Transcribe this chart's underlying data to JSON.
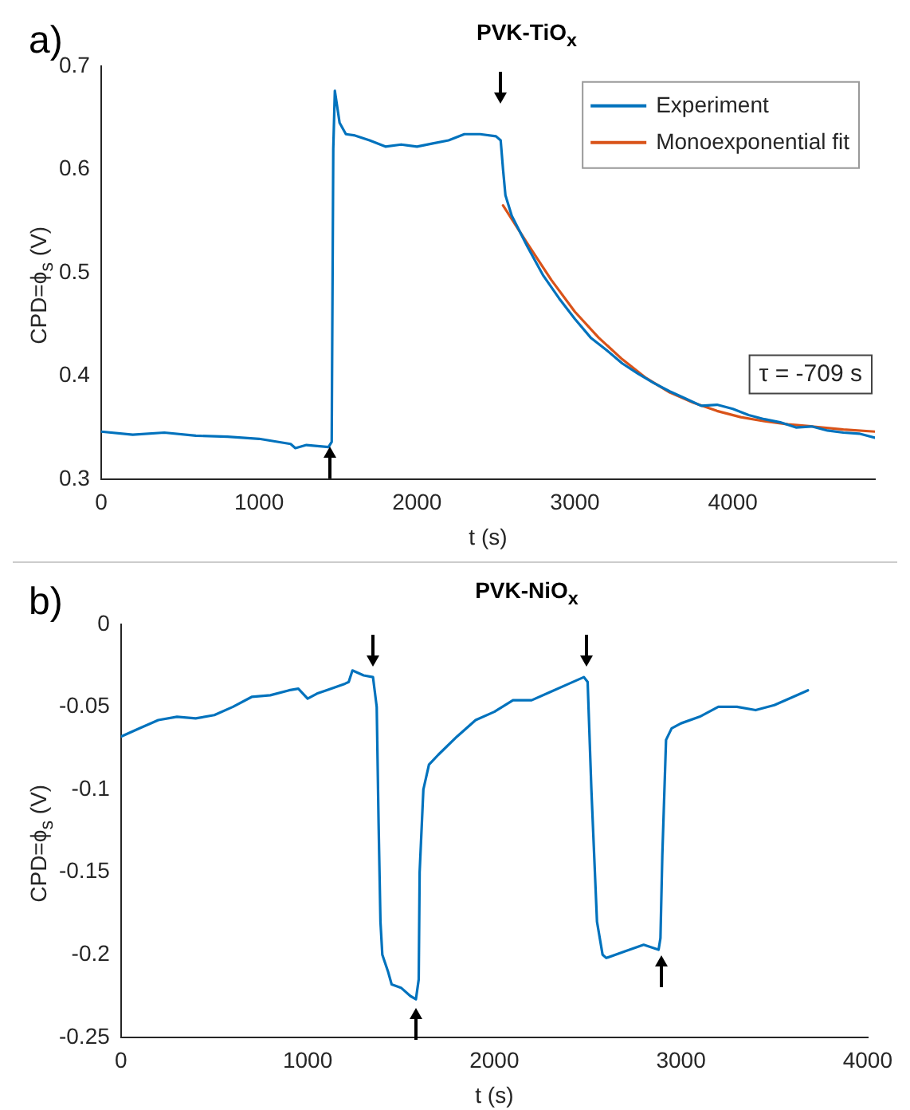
{
  "chart_data": [
    {
      "type": "line",
      "title": "PVK-TiO$_{x}$",
      "xlabel": "t (s)",
      "ylabel": "CPD=ϕ$_{s}$ (V)",
      "annotations": [
        "a)",
        "τ = -709 s"
      ],
      "xlim": [
        0,
        4900
      ],
      "xticks": [
        0,
        1000,
        2000,
        3000,
        4000
      ],
      "ylim": [
        0.3,
        0.7
      ],
      "yticks": [
        0.3,
        0.4,
        0.5,
        0.6,
        0.7
      ],
      "grid": false,
      "legend": "top right",
      "marker": "none",
      "line_style": "solid",
      "series": [
        {
          "name": "Experiment",
          "color": "#0072bd",
          "x": [
            0,
            200,
            400,
            600,
            800,
            1000,
            1200,
            1230,
            1300,
            1440,
            1460,
            1470,
            1480,
            1510,
            1550,
            1600,
            1700,
            1800,
            1900,
            2000,
            2100,
            2200,
            2300,
            2400,
            2500,
            2530,
            2545,
            2560,
            2600,
            2700,
            2800,
            2900,
            3000,
            3100,
            3200,
            3300,
            3400,
            3500,
            3600,
            3700,
            3800,
            3900,
            4000,
            4100,
            4200,
            4300,
            4400,
            4500,
            4600,
            4700,
            4800,
            4900
          ],
          "values": [
            0.346,
            0.343,
            0.345,
            0.342,
            0.341,
            0.339,
            0.334,
            0.33,
            0.333,
            0.331,
            0.336,
            0.62,
            0.676,
            0.645,
            0.634,
            0.633,
            0.628,
            0.622,
            0.624,
            0.622,
            0.625,
            0.628,
            0.634,
            0.634,
            0.632,
            0.628,
            0.6,
            0.575,
            0.555,
            0.525,
            0.497,
            0.475,
            0.455,
            0.437,
            0.425,
            0.412,
            0.402,
            0.393,
            0.385,
            0.378,
            0.371,
            0.372,
            0.368,
            0.362,
            0.358,
            0.355,
            0.35,
            0.351,
            0.347,
            0.345,
            0.344,
            0.34
          ]
        },
        {
          "name": "Monoexponential fit",
          "color": "#d95319",
          "x": [
            2545,
            2700,
            2850,
            3000,
            3150,
            3300,
            3450,
            3600,
            3750,
            3900,
            4050,
            4200,
            4350,
            4500,
            4700,
            4900
          ],
          "values": [
            0.565,
            0.528,
            0.493,
            0.462,
            0.437,
            0.416,
            0.398,
            0.384,
            0.374,
            0.366,
            0.36,
            0.356,
            0.353,
            0.351,
            0.348,
            0.346
          ]
        }
      ]
    },
    {
      "type": "line",
      "title": "PVK-NiO$_{x}$",
      "xlabel": "t (s)",
      "ylabel": "CPD=ϕ$_{s}$ (V)",
      "annotations": [
        "b)"
      ],
      "xlim": [
        0,
        4000
      ],
      "xticks": [
        0,
        1000,
        2000,
        3000,
        4000
      ],
      "ylim": [
        -0.25,
        0
      ],
      "yticks": [
        -0.25,
        -0.2,
        -0.15,
        -0.1,
        -0.05,
        0
      ],
      "grid": false,
      "legend": false,
      "marker": "none",
      "line_style": "solid",
      "series": [
        {
          "color": "#0072bd",
          "x": [
            0,
            100,
            200,
            300,
            400,
            500,
            600,
            700,
            800,
            900,
            950,
            1000,
            1050,
            1100,
            1200,
            1220,
            1240,
            1300,
            1350,
            1370,
            1380,
            1390,
            1400,
            1430,
            1450,
            1500,
            1550,
            1580,
            1595,
            1600,
            1620,
            1650,
            1700,
            1800,
            1900,
            2000,
            2100,
            2200,
            2300,
            2400,
            2480,
            2500,
            2520,
            2550,
            2580,
            2600,
            2700,
            2800,
            2880,
            2890,
            2900,
            2920,
            2950,
            3000,
            3100,
            3200,
            3300,
            3400,
            3500,
            3600,
            3680
          ],
          "values": [
            -0.068,
            -0.063,
            -0.058,
            -0.056,
            -0.057,
            -0.055,
            -0.05,
            -0.044,
            -0.043,
            -0.04,
            -0.039,
            -0.045,
            -0.042,
            -0.04,
            -0.036,
            -0.035,
            -0.028,
            -0.031,
            -0.032,
            -0.05,
            -0.12,
            -0.18,
            -0.2,
            -0.21,
            -0.218,
            -0.22,
            -0.225,
            -0.227,
            -0.215,
            -0.15,
            -0.1,
            -0.085,
            -0.079,
            -0.068,
            -0.058,
            -0.053,
            -0.046,
            -0.046,
            -0.041,
            -0.036,
            -0.032,
            -0.035,
            -0.1,
            -0.18,
            -0.2,
            -0.202,
            -0.198,
            -0.194,
            -0.197,
            -0.19,
            -0.14,
            -0.07,
            -0.063,
            -0.06,
            -0.056,
            -0.05,
            -0.05,
            -0.052,
            -0.049,
            -0.044,
            -0.04
          ]
        }
      ]
    }
  ]
}
